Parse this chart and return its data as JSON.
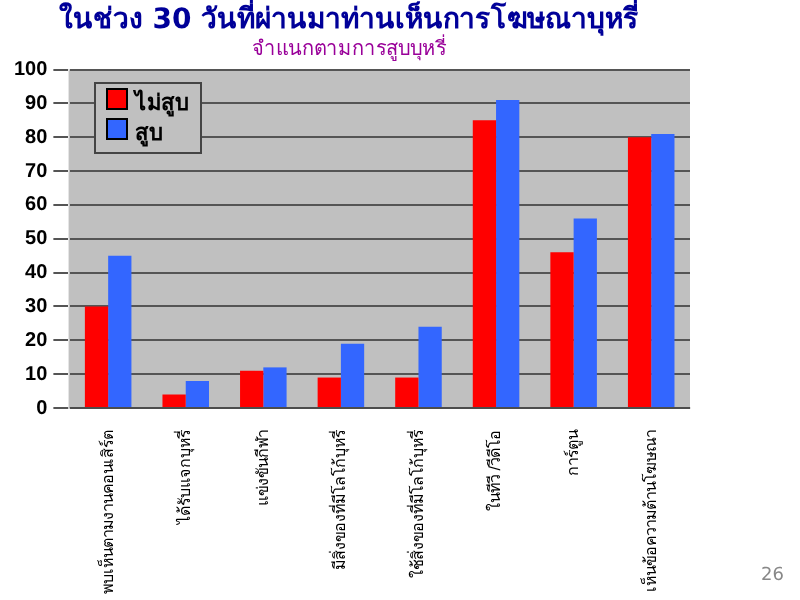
{
  "chart_data": {
    "type": "bar",
    "title": "ในช่วง 30 วันที่ผ่านมาท่านเห็นการโฆษณาบุหรี่",
    "subtitle": "จำแนกตามการสูบบุหรี่",
    "categories": [
      "พบเห็นตามงานคอนเสิร์ต",
      "ได้รับแจกบุหรี่",
      "แข่งขันกีฬา",
      "มีสิ่งของที่มีโลโก้บุหรี่",
      "ใช้สิ่งของที่มีโลโก้บุหรี่",
      "ในทีวี /วีดีโอ",
      "การ์ตูน",
      "เห็นข้อความต้านโฆษณา"
    ],
    "series": [
      {
        "name": "ไม่สูบ",
        "color": "#ff0000",
        "values": [
          30,
          4,
          11,
          9,
          9,
          85,
          46,
          80
        ]
      },
      {
        "name": "สูบ",
        "color": "#3366ff",
        "values": [
          45,
          8,
          12,
          19,
          24,
          91,
          56,
          81
        ]
      }
    ],
    "ylim": [
      0,
      100
    ],
    "yticks": [
      0,
      10,
      20,
      30,
      40,
      50,
      60,
      70,
      80,
      90,
      100
    ],
    "grid": "y",
    "legend": "top left",
    "annotations": [
      "26"
    ]
  }
}
